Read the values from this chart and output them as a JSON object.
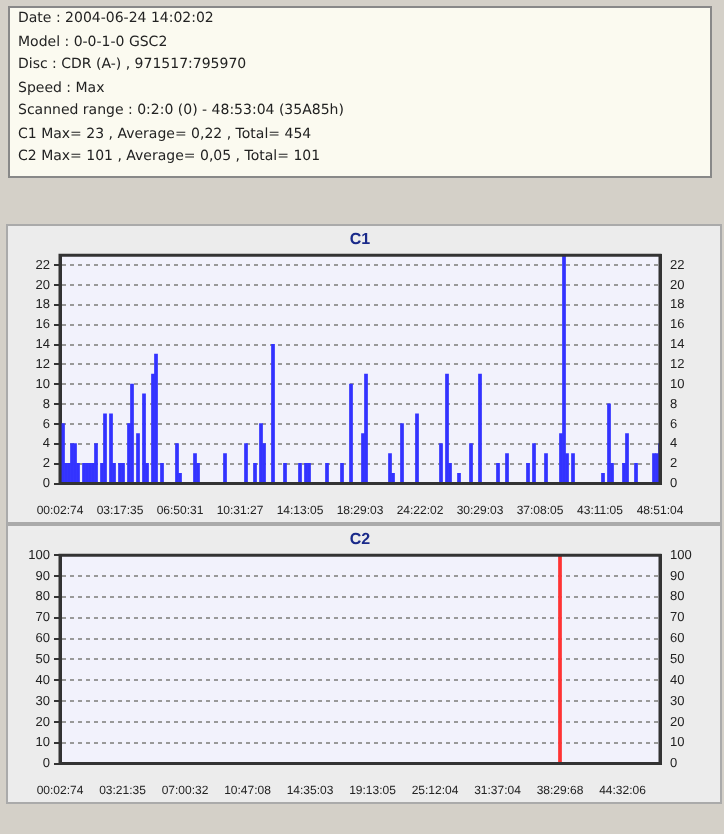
{
  "chart_data": [
    {
      "type": "other",
      "annotations": [
        "Date : 2004-06-24 14:02:02",
        "Model : 0-0-1-0 GSC2",
        "Disc : CDR (A-) , 971517:795970",
        "Speed : Max",
        "Scanned range : 0:2:0 (0) - 48:53:04 (35A85h)",
        "C1 Max= 23 , Average= 0,22 , Total= 454",
        "C2 Max= 101 , Average= 0,05 , Total= 101"
      ]
    },
    {
      "type": "bar",
      "title": "C1",
      "categories": [
        "00:02:74",
        null,
        null,
        null,
        null,
        null,
        null,
        null,
        null,
        null,
        null,
        null,
        null,
        null,
        null,
        null,
        null,
        null,
        null,
        null,
        "03:17:35",
        null,
        null,
        null,
        null,
        null,
        null,
        null,
        null,
        null,
        null,
        null,
        null,
        null,
        null,
        null,
        null,
        null,
        null,
        null,
        "06:50:31",
        null,
        null,
        null,
        null,
        null,
        null,
        null,
        null,
        null,
        null,
        null,
        null,
        null,
        null,
        null,
        null,
        null,
        null,
        null,
        "10:31:27",
        null,
        null,
        null,
        null,
        null,
        null,
        null,
        null,
        null,
        null,
        null,
        null,
        null,
        null,
        null,
        null,
        null,
        null,
        null,
        "14:13:05",
        null,
        null,
        null,
        null,
        null,
        null,
        null,
        null,
        null,
        null,
        null,
        null,
        null,
        null,
        null,
        null,
        null,
        null,
        null,
        "18:29:03",
        null,
        null,
        null,
        null,
        null,
        null,
        null,
        null,
        null,
        null,
        null,
        null,
        null,
        null,
        null,
        null,
        null,
        null,
        null,
        "24:22:02",
        null,
        null,
        null,
        null,
        null,
        null,
        null,
        null,
        null,
        null,
        null,
        null,
        null,
        null,
        null,
        null,
        null,
        null,
        null,
        "30:29:03",
        null,
        null,
        null,
        null,
        null,
        null,
        null,
        null,
        null,
        null,
        null,
        null,
        null,
        null,
        null,
        null,
        null,
        null,
        null,
        "37:08:05",
        null,
        null,
        null,
        null,
        null,
        null,
        null,
        null,
        null,
        null,
        null,
        null,
        null,
        null,
        null,
        null,
        null,
        null,
        null,
        "43:11:05",
        null,
        null,
        null,
        null,
        null,
        null,
        null,
        null,
        null,
        null,
        null,
        null,
        null,
        null,
        null,
        null,
        null,
        null,
        null,
        "48:51:04"
      ],
      "ylim": [
        0,
        23
      ],
      "yticks": [
        0,
        2,
        4,
        6,
        8,
        10,
        12,
        14,
        16,
        18,
        20,
        22
      ],
      "y2lim": [
        0,
        23
      ],
      "y2ticks": [
        0,
        2,
        4,
        6,
        8,
        10,
        12,
        14,
        16,
        18,
        20,
        22
      ],
      "grid": "y",
      "legend": false,
      "series": [
        {
          "color": "#3333ff",
          "values": [
            0,
            6,
            2,
            2,
            4,
            4,
            2,
            0,
            2,
            2,
            2,
            2,
            4,
            0,
            2,
            7,
            0,
            7,
            2,
            0,
            2,
            2,
            0,
            6,
            10,
            0,
            5,
            0,
            9,
            2,
            0,
            11,
            13,
            0,
            2,
            0,
            0,
            0,
            0,
            4,
            1,
            0,
            0,
            0,
            0,
            3,
            2,
            0,
            0,
            0,
            0,
            0,
            0,
            0,
            0,
            3,
            0,
            0,
            0,
            0,
            0,
            0,
            4,
            0,
            0,
            2,
            0,
            6,
            4,
            0,
            0,
            14,
            0,
            0,
            0,
            2,
            0,
            0,
            0,
            0,
            2,
            0,
            2,
            2,
            0,
            0,
            0,
            0,
            0,
            2,
            0,
            0,
            0,
            0,
            2,
            0,
            0,
            10,
            0,
            0,
            0,
            5,
            11,
            0,
            0,
            0,
            0,
            0,
            0,
            0,
            3,
            1,
            0,
            0,
            6,
            0,
            0,
            0,
            0,
            7,
            0,
            0,
            0,
            0,
            0,
            0,
            0,
            4,
            0,
            11,
            2,
            0,
            0,
            1,
            0,
            0,
            0,
            4,
            0,
            0,
            11,
            0,
            0,
            0,
            0,
            0,
            2,
            0,
            0,
            3,
            0,
            0,
            0,
            0,
            0,
            0,
            2,
            0,
            4,
            0,
            0,
            0,
            3,
            0,
            0,
            0,
            0,
            5,
            23,
            3,
            0,
            3,
            0,
            0,
            0,
            0,
            0,
            0,
            0,
            0,
            0,
            1,
            0,
            8,
            2,
            0,
            0,
            0,
            2,
            5,
            0,
            0,
            2,
            0,
            0,
            0,
            0,
            0,
            3,
            3,
            4
          ]
        }
      ]
    },
    {
      "type": "bar",
      "title": "C2",
      "categories": [
        "00:02:74",
        null,
        null,
        null,
        null,
        null,
        null,
        null,
        null,
        null,
        null,
        null,
        null,
        null,
        null,
        null,
        null,
        null,
        null,
        null,
        "03:21:35",
        null,
        null,
        null,
        null,
        null,
        null,
        null,
        null,
        null,
        null,
        null,
        null,
        null,
        null,
        null,
        null,
        null,
        null,
        null,
        "07:00:32",
        null,
        null,
        null,
        null,
        null,
        null,
        null,
        null,
        null,
        null,
        null,
        null,
        null,
        null,
        null,
        null,
        null,
        null,
        null,
        "10:47:08",
        null,
        null,
        null,
        null,
        null,
        null,
        null,
        null,
        null,
        null,
        null,
        null,
        null,
        null,
        null,
        null,
        null,
        null,
        null,
        "14:35:03",
        null,
        null,
        null,
        null,
        null,
        null,
        null,
        null,
        null,
        null,
        null,
        null,
        null,
        null,
        null,
        null,
        null,
        null,
        null,
        "19:13:05",
        null,
        null,
        null,
        null,
        null,
        null,
        null,
        null,
        null,
        null,
        null,
        null,
        null,
        null,
        null,
        null,
        null,
        null,
        null,
        "25:12:04",
        null,
        null,
        null,
        null,
        null,
        null,
        null,
        null,
        null,
        null,
        null,
        null,
        null,
        null,
        null,
        null,
        null,
        null,
        null,
        "31:37:04",
        null,
        null,
        null,
        null,
        null,
        null,
        null,
        null,
        null,
        null,
        null,
        null,
        null,
        null,
        null,
        null,
        null,
        null,
        null,
        "38:29:68",
        null,
        null,
        null,
        null,
        null,
        null,
        null,
        null,
        null,
        null,
        null,
        null,
        null,
        null,
        null,
        null,
        null,
        null,
        null,
        "44:32:06",
        null,
        null,
        null,
        null,
        null,
        null,
        null,
        null,
        null,
        null,
        null,
        null
      ],
      "ylim": [
        0,
        100
      ],
      "yticks": [
        0,
        10,
        20,
        30,
        40,
        50,
        60,
        70,
        80,
        90,
        100
      ],
      "y2lim": [
        0,
        100
      ],
      "y2ticks": [
        0,
        10,
        20,
        30,
        40,
        50,
        60,
        70,
        80,
        90,
        100
      ],
      "grid": "y",
      "legend": false,
      "series": [
        {
          "color": "#ff3333",
          "values": [
            0,
            0,
            0,
            0,
            0,
            0,
            0,
            0,
            0,
            0,
            0,
            0,
            0,
            0,
            0,
            0,
            0,
            0,
            0,
            0,
            0,
            0,
            0,
            0,
            0,
            0,
            0,
            0,
            0,
            0,
            0,
            0,
            0,
            0,
            0,
            0,
            0,
            0,
            0,
            0,
            0,
            0,
            0,
            0,
            0,
            0,
            0,
            0,
            0,
            0,
            0,
            0,
            0,
            0,
            0,
            0,
            0,
            0,
            0,
            0,
            0,
            0,
            0,
            0,
            0,
            0,
            0,
            0,
            0,
            0,
            0,
            0,
            0,
            0,
            0,
            0,
            0,
            0,
            0,
            0,
            0,
            0,
            0,
            0,
            0,
            0,
            0,
            0,
            0,
            0,
            0,
            0,
            0,
            0,
            0,
            0,
            0,
            0,
            0,
            0,
            0,
            0,
            0,
            0,
            0,
            0,
            0,
            0,
            0,
            0,
            0,
            0,
            0,
            0,
            0,
            0,
            0,
            0,
            0,
            0,
            0,
            0,
            0,
            0,
            0,
            0,
            0,
            0,
            0,
            0,
            0,
            0,
            0,
            0,
            0,
            0,
            0,
            0,
            0,
            0,
            0,
            0,
            0,
            0,
            0,
            0,
            0,
            0,
            0,
            0,
            0,
            0,
            0,
            0,
            0,
            0,
            0,
            0,
            0,
            0,
            100,
            0,
            0,
            0,
            0,
            0,
            0,
            0,
            0,
            0,
            0,
            0,
            0,
            0,
            0,
            0,
            0,
            0,
            0,
            0,
            0,
            0,
            0,
            0,
            0,
            0,
            0,
            0,
            0,
            0,
            0,
            0,
            0
          ]
        }
      ]
    }
  ]
}
